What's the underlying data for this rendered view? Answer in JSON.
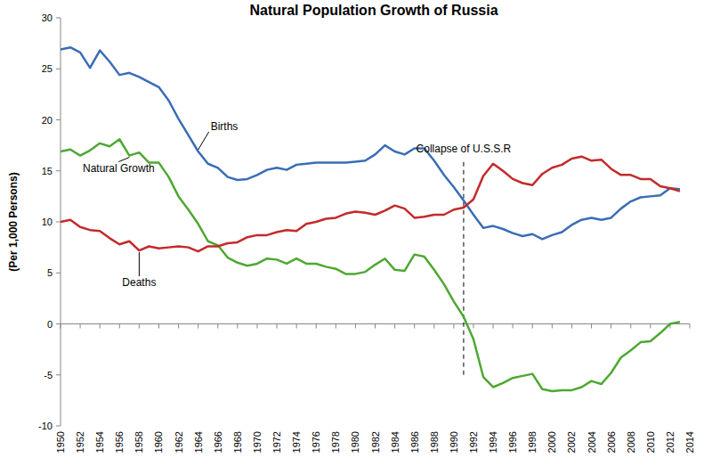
{
  "chart_data": {
    "type": "line",
    "title": "Natural Population Growth of Russia",
    "y_label": "(Per 1,000 Persons)",
    "x": [
      1950,
      1951,
      1952,
      1953,
      1954,
      1955,
      1956,
      1957,
      1958,
      1959,
      1960,
      1961,
      1962,
      1963,
      1964,
      1965,
      1966,
      1967,
      1968,
      1969,
      1970,
      1971,
      1972,
      1973,
      1974,
      1975,
      1976,
      1977,
      1978,
      1979,
      1980,
      1981,
      1982,
      1983,
      1984,
      1985,
      1986,
      1987,
      1988,
      1989,
      1990,
      1991,
      1992,
      1993,
      1994,
      1995,
      1996,
      1997,
      1998,
      1999,
      2000,
      2001,
      2002,
      2003,
      2004,
      2005,
      2006,
      2007,
      2008,
      2009,
      2010,
      2011,
      2012,
      2013
    ],
    "series": [
      {
        "name": "Births",
        "color": "#3a6db5",
        "values": [
          26.9,
          27.1,
          26.6,
          25.1,
          26.8,
          25.7,
          24.4,
          24.6,
          24.2,
          23.7,
          23.2,
          21.9,
          20.1,
          18.5,
          16.9,
          15.7,
          15.3,
          14.4,
          14.1,
          14.2,
          14.6,
          15.1,
          15.3,
          15.1,
          15.6,
          15.7,
          15.8,
          15.8,
          15.8,
          15.8,
          15.9,
          16.0,
          16.6,
          17.5,
          16.9,
          16.6,
          17.2,
          17.2,
          16.0,
          14.6,
          13.4,
          12.1,
          10.7,
          9.4,
          9.6,
          9.3,
          8.9,
          8.6,
          8.8,
          8.3,
          8.7,
          9.0,
          9.7,
          10.2,
          10.4,
          10.2,
          10.4,
          11.3,
          12.0,
          12.4,
          12.5,
          12.6,
          13.3,
          13.2
        ]
      },
      {
        "name": "Natural Growth",
        "color": "#4ea832",
        "values": [
          16.9,
          17.1,
          16.5,
          17.0,
          17.7,
          17.4,
          18.1,
          16.5,
          16.8,
          15.8,
          15.8,
          14.4,
          12.5,
          11.2,
          9.8,
          8.1,
          7.7,
          6.5,
          6.0,
          5.7,
          5.9,
          6.4,
          6.3,
          5.9,
          6.4,
          5.9,
          5.9,
          5.6,
          5.4,
          4.9,
          4.9,
          5.1,
          5.8,
          6.4,
          5.3,
          5.2,
          6.8,
          6.6,
          5.3,
          3.9,
          2.2,
          0.7,
          -1.5,
          -5.2,
          -6.2,
          -5.8,
          -5.3,
          -5.1,
          -4.9,
          -6.4,
          -6.6,
          -6.5,
          -6.5,
          -6.2,
          -5.6,
          -5.9,
          -4.8,
          -3.3,
          -2.6,
          -1.8,
          -1.7,
          -0.9,
          0.0,
          0.2
        ]
      },
      {
        "name": "Deaths",
        "color": "#c42a2a",
        "values": [
          10.0,
          10.2,
          9.5,
          9.2,
          9.1,
          8.4,
          7.8,
          8.1,
          7.2,
          7.6,
          7.4,
          7.5,
          7.6,
          7.5,
          7.1,
          7.6,
          7.6,
          7.9,
          8.0,
          8.5,
          8.7,
          8.7,
          9.0,
          9.2,
          9.1,
          9.8,
          10.0,
          10.3,
          10.4,
          10.8,
          11.0,
          10.9,
          10.7,
          11.1,
          11.6,
          11.3,
          10.4,
          10.5,
          10.7,
          10.7,
          11.2,
          11.4,
          12.2,
          14.5,
          15.7,
          15.0,
          14.2,
          13.8,
          13.6,
          14.7,
          15.3,
          15.6,
          16.2,
          16.4,
          16.0,
          16.1,
          15.2,
          14.6,
          14.6,
          14.2,
          14.2,
          13.5,
          13.3,
          13.0
        ]
      }
    ],
    "annotations": [
      {
        "text": "Collapse of U.S.S.R",
        "x": 1991,
        "y": [
          -5,
          16
        ]
      }
    ],
    "xlim": [
      1950,
      2014
    ],
    "xticks": [
      1950,
      1952,
      1954,
      1956,
      1958,
      1960,
      1962,
      1964,
      1966,
      1968,
      1970,
      1972,
      1974,
      1976,
      1978,
      1980,
      1982,
      1984,
      1986,
      1988,
      1990,
      1992,
      1994,
      1996,
      1998,
      2000,
      2002,
      2004,
      2006,
      2008,
      2010,
      2012,
      2014
    ],
    "ylim": [
      -10,
      30
    ],
    "yticks": [
      -10,
      -5,
      0,
      5,
      10,
      15,
      20,
      25,
      30
    ],
    "grid": false
  }
}
